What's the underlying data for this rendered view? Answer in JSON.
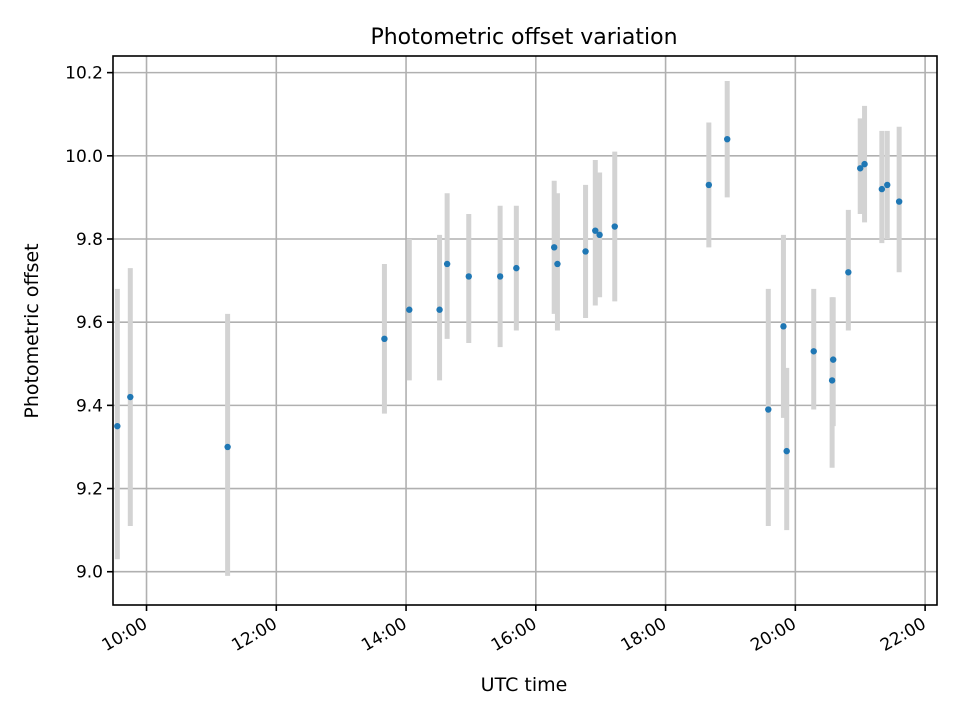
{
  "chart_data": {
    "type": "scatter",
    "title": "Photometric offset variation",
    "xlabel": "UTC time",
    "ylabel": "Photometric offset",
    "xlim": [
      "09:29",
      "22:11"
    ],
    "ylim": [
      8.92,
      10.24
    ],
    "x_ticks": [
      "10:00",
      "12:00",
      "14:00",
      "16:00",
      "18:00",
      "20:00",
      "22:00"
    ],
    "y_ticks": [
      "9.0",
      "9.2",
      "9.4",
      "9.6",
      "9.8",
      "10.0",
      "10.2"
    ],
    "grid": true,
    "colors": {
      "point": "#1f77b4",
      "error_bar": "#d3d3d3",
      "grid": "#b0b0b0"
    },
    "series": [
      {
        "points": [
          {
            "x": "09:33",
            "y": 9.35,
            "ylow": 9.03,
            "yhigh": 9.68
          },
          {
            "x": "09:45",
            "y": 9.42,
            "ylow": 9.11,
            "yhigh": 9.73
          },
          {
            "x": "11:15",
            "y": 9.3,
            "ylow": 8.99,
            "yhigh": 9.62
          },
          {
            "x": "13:40",
            "y": 9.56,
            "ylow": 9.38,
            "yhigh": 9.74
          },
          {
            "x": "14:03",
            "y": 9.63,
            "ylow": 9.46,
            "yhigh": 9.8
          },
          {
            "x": "14:31",
            "y": 9.63,
            "ylow": 9.46,
            "yhigh": 9.81
          },
          {
            "x": "14:38",
            "y": 9.74,
            "ylow": 9.56,
            "yhigh": 9.91
          },
          {
            "x": "14:58",
            "y": 9.71,
            "ylow": 9.55,
            "yhigh": 9.86
          },
          {
            "x": "15:27",
            "y": 9.71,
            "ylow": 9.54,
            "yhigh": 9.88
          },
          {
            "x": "15:42",
            "y": 9.73,
            "ylow": 9.58,
            "yhigh": 9.88
          },
          {
            "x": "16:17",
            "y": 9.78,
            "ylow": 9.62,
            "yhigh": 9.94
          },
          {
            "x": "16:20",
            "y": 9.74,
            "ylow": 9.58,
            "yhigh": 9.91
          },
          {
            "x": "16:46",
            "y": 9.77,
            "ylow": 9.61,
            "yhigh": 9.93
          },
          {
            "x": "16:55",
            "y": 9.82,
            "ylow": 9.64,
            "yhigh": 9.99
          },
          {
            "x": "16:59",
            "y": 9.81,
            "ylow": 9.66,
            "yhigh": 9.96
          },
          {
            "x": "17:13",
            "y": 9.83,
            "ylow": 9.65,
            "yhigh": 10.01
          },
          {
            "x": "18:40",
            "y": 9.93,
            "ylow": 9.78,
            "yhigh": 10.08
          },
          {
            "x": "18:57",
            "y": 10.04,
            "ylow": 9.9,
            "yhigh": 10.18
          },
          {
            "x": "19:35",
            "y": 9.39,
            "ylow": 9.11,
            "yhigh": 9.68
          },
          {
            "x": "19:49",
            "y": 9.59,
            "ylow": 9.37,
            "yhigh": 9.81
          },
          {
            "x": "19:52",
            "y": 9.29,
            "ylow": 9.1,
            "yhigh": 9.49
          },
          {
            "x": "20:17",
            "y": 9.53,
            "ylow": 9.39,
            "yhigh": 9.68
          },
          {
            "x": "20:34",
            "y": 9.46,
            "ylow": 9.25,
            "yhigh": 9.66
          },
          {
            "x": "20:35",
            "y": 9.51,
            "ylow": 9.35,
            "yhigh": 9.66
          },
          {
            "x": "20:49",
            "y": 9.72,
            "ylow": 9.58,
            "yhigh": 9.87
          },
          {
            "x": "21:00",
            "y": 9.97,
            "ylow": 9.86,
            "yhigh": 10.09
          },
          {
            "x": "21:04",
            "y": 9.98,
            "ylow": 9.84,
            "yhigh": 10.12
          },
          {
            "x": "21:20",
            "y": 9.92,
            "ylow": 9.79,
            "yhigh": 10.06
          },
          {
            "x": "21:25",
            "y": 9.93,
            "ylow": 9.8,
            "yhigh": 10.06
          },
          {
            "x": "21:36",
            "y": 9.89,
            "ylow": 9.72,
            "yhigh": 10.07
          }
        ]
      }
    ]
  }
}
